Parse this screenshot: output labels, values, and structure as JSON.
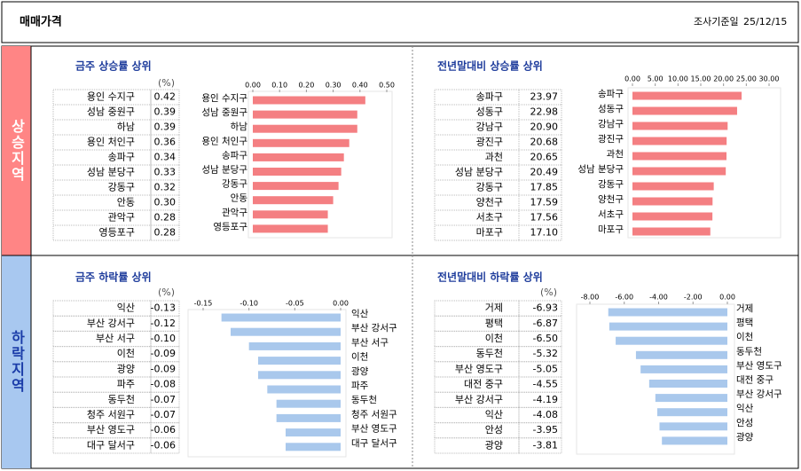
{
  "header": {
    "title": "매매가격",
    "survey_date_label": "조사기준일",
    "survey_date": "25/12/15"
  },
  "sections": [
    {
      "label": "상승지역"
    },
    {
      "label": "하락지역"
    }
  ],
  "chart_data": [
    {
      "type": "bar",
      "title": "금주 상승률 상위",
      "unit": "(%)",
      "color": "#f47f82",
      "categories": [
        "용인 수지구",
        "성남 중원구",
        "하남",
        "용인 처인구",
        "송파구",
        "성남 분당구",
        "강동구",
        "안동",
        "관악구",
        "영등포구"
      ],
      "values": [
        0.42,
        0.39,
        0.39,
        0.36,
        0.34,
        0.33,
        0.32,
        0.3,
        0.28,
        0.28
      ],
      "value_labels": [
        "0.42",
        "0.39",
        "0.39",
        "0.36",
        "0.34",
        "0.33",
        "0.32",
        "0.30",
        "0.28",
        "0.28"
      ],
      "xlim": [
        0,
        0.5
      ],
      "xticks": [
        {
          "value": 0,
          "label": "0.00"
        },
        {
          "value": 0.1,
          "label": "0.10"
        },
        {
          "value": 0.2,
          "label": "0.20"
        },
        {
          "value": 0.3,
          "label": "0.30"
        },
        {
          "value": 0.4,
          "label": "0.40"
        },
        {
          "value": 0.5,
          "label": "0.50"
        }
      ]
    },
    {
      "type": "bar",
      "title": "전년말대비 상승률 상위",
      "color": "#f47f82",
      "categories": [
        "송파구",
        "성동구",
        "강남구",
        "광진구",
        "과천",
        "성남 분당구",
        "강동구",
        "양천구",
        "서초구",
        "마포구"
      ],
      "values": [
        23.97,
        22.98,
        20.9,
        20.68,
        20.65,
        20.49,
        17.85,
        17.59,
        17.56,
        17.1
      ],
      "value_labels": [
        "23.97",
        "22.98",
        "20.90",
        "20.68",
        "20.65",
        "20.49",
        "17.85",
        "17.59",
        "17.56",
        "17.10"
      ],
      "xlim": [
        0,
        30
      ],
      "xticks": [
        {
          "value": 0,
          "label": "0.00"
        },
        {
          "value": 5,
          "label": "5.00"
        },
        {
          "value": 10,
          "label": "10.00"
        },
        {
          "value": 15,
          "label": "15.00"
        },
        {
          "value": 20,
          "label": "20.00"
        },
        {
          "value": 25,
          "label": "25.00"
        },
        {
          "value": 30,
          "label": "30.00"
        }
      ]
    },
    {
      "type": "bar",
      "title": "금주 하락률 상위",
      "unit": "(%)",
      "color": "#a9c8ec",
      "categories": [
        "익산",
        "부산 강서구",
        "부산 서구",
        "이천",
        "광양",
        "파주",
        "동두천",
        "청주 서원구",
        "부산 영도구",
        "대구 달서구"
      ],
      "values": [
        -0.13,
        -0.12,
        -0.1,
        -0.09,
        -0.09,
        -0.08,
        -0.07,
        -0.07,
        -0.06,
        -0.06
      ],
      "value_labels": [
        "-0.13",
        "-0.12",
        "-0.10",
        "-0.09",
        "-0.09",
        "-0.08",
        "-0.07",
        "-0.07",
        "-0.06",
        "-0.06"
      ],
      "xlim": [
        -0.15,
        0
      ],
      "xticks": [
        {
          "value": -0.15,
          "label": "-0.15"
        },
        {
          "value": -0.1,
          "label": "-0.10"
        },
        {
          "value": -0.05,
          "label": "-0.05"
        },
        {
          "value": 0,
          "label": "0.00"
        }
      ]
    },
    {
      "type": "bar",
      "title": "전년말대비 하락률 상위",
      "unit": "(%)",
      "color": "#a9c8ec",
      "categories": [
        "거제",
        "평택",
        "이천",
        "동두천",
        "부산 영도구",
        "대전 중구",
        "부산 강서구",
        "익산",
        "안성",
        "광양"
      ],
      "values": [
        -6.93,
        -6.87,
        -6.5,
        -5.32,
        -5.05,
        -4.55,
        -4.19,
        -4.08,
        -3.95,
        -3.81
      ],
      "value_labels": [
        "-6.93",
        "-6.87",
        "-6.50",
        "-5.32",
        "-5.05",
        "-4.55",
        "-4.19",
        "-4.08",
        "-3.95",
        "-3.81"
      ],
      "xlim": [
        -8,
        0
      ],
      "xticks": [
        {
          "value": -8,
          "label": "-8.00"
        },
        {
          "value": -6,
          "label": "-6.00"
        },
        {
          "value": -4,
          "label": "-4.00"
        },
        {
          "value": -2,
          "label": "-2.00"
        },
        {
          "value": 0,
          "label": "0.00"
        }
      ]
    }
  ]
}
